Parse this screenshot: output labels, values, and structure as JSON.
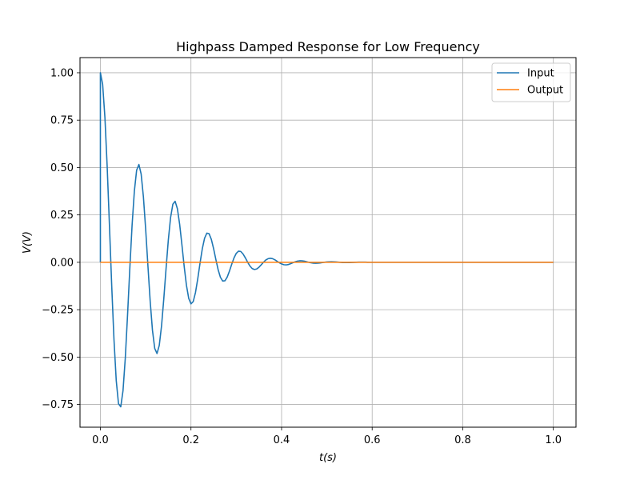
{
  "chart_data": {
    "type": "line",
    "title": "Highpass Damped Response for Low Frequency",
    "xlabel": "t(s)",
    "ylabel": "V(V)",
    "xlim": [
      -0.045,
      1.05
    ],
    "ylim": [
      -0.87,
      1.08
    ],
    "xticks": [
      0.0,
      0.2,
      0.4,
      0.6,
      0.8,
      1.0
    ],
    "xtick_labels": [
      "0.0",
      "0.2",
      "0.4",
      "0.6",
      "0.8",
      "1.0"
    ],
    "yticks": [
      -0.75,
      -0.5,
      -0.25,
      0.0,
      0.25,
      0.5,
      0.75,
      1.0
    ],
    "ytick_labels": [
      "−0.75",
      "−0.50",
      "−0.25",
      "0.00",
      "0.25",
      "0.50",
      "0.75",
      "1.00"
    ],
    "grid": true,
    "legend_position": "top-right",
    "series": [
      {
        "name": "Input",
        "color": "#1f77b4",
        "x": [
          0.0,
          0.0,
          0.005,
          0.01,
          0.015,
          0.02,
          0.025,
          0.03,
          0.035,
          0.04,
          0.045,
          0.05,
          0.055,
          0.06,
          0.065,
          0.07,
          0.075,
          0.08,
          0.085,
          0.09,
          0.095,
          0.1,
          0.105,
          0.11,
          0.115,
          0.12,
          0.125,
          0.13,
          0.135,
          0.14,
          0.145,
          0.15,
          0.155,
          0.16,
          0.165,
          0.17,
          0.175,
          0.18,
          0.185,
          0.19,
          0.195,
          0.2,
          0.205,
          0.21,
          0.215,
          0.22,
          0.225,
          0.23,
          0.235,
          0.24,
          0.245,
          0.25,
          0.255,
          0.26,
          0.265,
          0.27,
          0.275,
          0.28,
          0.285,
          0.29,
          0.295,
          0.3,
          0.305,
          0.31,
          0.315,
          0.32,
          0.325,
          0.33,
          0.335,
          0.34,
          0.345,
          0.35,
          0.355,
          0.36,
          0.365,
          0.37,
          0.375,
          0.38,
          0.385,
          0.39,
          0.395,
          0.4,
          0.405,
          0.41,
          0.415,
          0.42,
          0.425,
          0.43,
          0.435,
          0.44,
          0.445,
          0.45,
          0.455,
          0.46,
          0.465,
          0.47,
          0.475,
          0.48,
          0.485,
          0.49,
          0.495,
          0.5,
          0.505,
          0.51,
          0.515,
          0.52,
          0.525,
          0.53,
          0.535,
          0.54,
          0.545,
          0.55,
          0.555,
          0.56,
          0.565,
          0.57,
          0.575,
          0.58,
          0.585,
          0.59,
          0.595,
          0.6,
          0.605,
          0.61,
          0.615,
          0.62,
          0.625,
          0.63,
          0.635,
          0.64,
          0.645,
          0.65,
          0.655,
          0.66,
          0.665,
          0.67,
          0.675,
          0.68,
          0.685,
          0.69,
          0.695,
          0.7,
          0.705,
          0.71,
          0.715,
          0.72,
          0.725,
          0.73,
          0.735,
          0.74,
          0.745,
          0.75,
          0.755,
          0.76,
          0.765,
          0.77,
          0.775,
          0.78,
          0.785,
          0.79,
          0.795,
          0.8,
          0.805,
          0.81,
          0.815,
          0.82,
          0.825,
          0.83,
          0.835,
          0.84,
          0.845,
          0.85,
          0.855,
          0.86,
          0.865,
          0.87,
          0.875,
          0.88,
          0.885,
          0.89,
          0.895,
          0.9,
          0.905,
          0.91,
          0.915,
          0.92,
          0.925,
          0.93,
          0.935,
          0.94,
          0.945,
          0.95,
          0.955,
          0.96,
          0.965,
          0.97,
          0.975,
          0.98,
          0.985,
          0.99,
          0.995,
          1.0
        ],
        "y": [
          0.0,
          1.0,
          0.9383,
          0.7649,
          0.5052,
          0.1955,
          -0.1222,
          -0.4073,
          -0.6237,
          -0.7461,
          -0.7625,
          -0.6762,
          -0.505,
          -0.2779,
          -0.0317,
          0.1958,
          0.3751,
          0.4857,
          0.516,
          0.4654,
          0.3446,
          0.1736,
          -0.02,
          -0.2072,
          -0.3593,
          -0.4545,
          -0.4811,
          -0.4382,
          -0.3357,
          -0.1922,
          -0.0328,
          0.1181,
          0.2365,
          0.3065,
          0.3218,
          0.283,
          0.2007,
          0.0919,
          -0.022,
          -0.1214,
          -0.1901,
          -0.2193,
          -0.2073,
          -0.159,
          -0.0865,
          -0.0044,
          0.0715,
          0.1269,
          0.1539,
          0.1507,
          0.1206,
          0.0715,
          0.0142,
          -0.0394,
          -0.0791,
          -0.0989,
          -0.0975,
          -0.0779,
          -0.0461,
          -0.0099,
          0.0233,
          0.0474,
          0.0588,
          0.057,
          0.0439,
          0.0235,
          0.0009,
          -0.0191,
          -0.0326,
          -0.0379,
          -0.0352,
          -0.0262,
          -0.0134,
          0.0002,
          0.0117,
          0.019,
          0.0215,
          0.0193,
          0.0135,
          0.0057,
          -0.0021,
          -0.0086,
          -0.0126,
          -0.0137,
          -0.0117,
          -0.0075,
          -0.0023,
          0.0026,
          0.0063,
          0.008,
          0.0078,
          0.006,
          0.0032,
          0.0001,
          -0.0027,
          -0.0046,
          -0.0052,
          -0.0047,
          -0.0033,
          -0.0015,
          0.0003,
          0.0018,
          0.0027,
          0.0029,
          0.0025,
          0.0017,
          0.0006,
          -0.0004,
          -0.0012,
          -0.0016,
          -0.0016,
          -0.0013,
          -0.0008,
          -0.0002,
          0.0003,
          0.0007,
          0.0009,
          0.0008,
          0.0006,
          0.0003,
          0.0,
          0.0,
          0.0,
          0.0,
          0.0,
          0.0,
          0.0,
          0.0,
          0.0,
          0.0,
          0.0,
          0.0,
          0.0,
          0.0,
          0.0,
          0.0,
          0.0,
          0.0,
          0.0,
          0.0,
          0.0,
          0.0,
          0.0,
          0.0,
          0.0,
          0.0,
          0.0,
          0.0,
          0.0,
          0.0,
          0.0,
          0.0,
          0.0,
          0.0,
          0.0,
          0.0,
          0.0,
          0.0,
          0.0,
          0.0,
          0.0,
          0.0,
          0.0,
          0.0,
          0.0,
          0.0,
          0.0,
          0.0,
          0.0,
          0.0,
          0.0,
          0.0,
          0.0,
          0.0,
          0.0,
          0.0,
          0.0,
          0.0,
          0.0,
          0.0,
          0.0,
          0.0,
          0.0,
          0.0,
          0.0,
          0.0,
          0.0,
          0.0,
          0.0,
          0.0,
          0.0,
          0.0,
          0.0,
          0.0,
          0.0,
          0.0,
          0.0,
          0.0,
          0.0,
          0.0,
          0.0,
          0.0
        ]
      },
      {
        "name": "Output",
        "color": "#ff7f0e",
        "x": [
          0.0,
          1.0
        ],
        "y": [
          0.0,
          0.0
        ]
      }
    ]
  }
}
